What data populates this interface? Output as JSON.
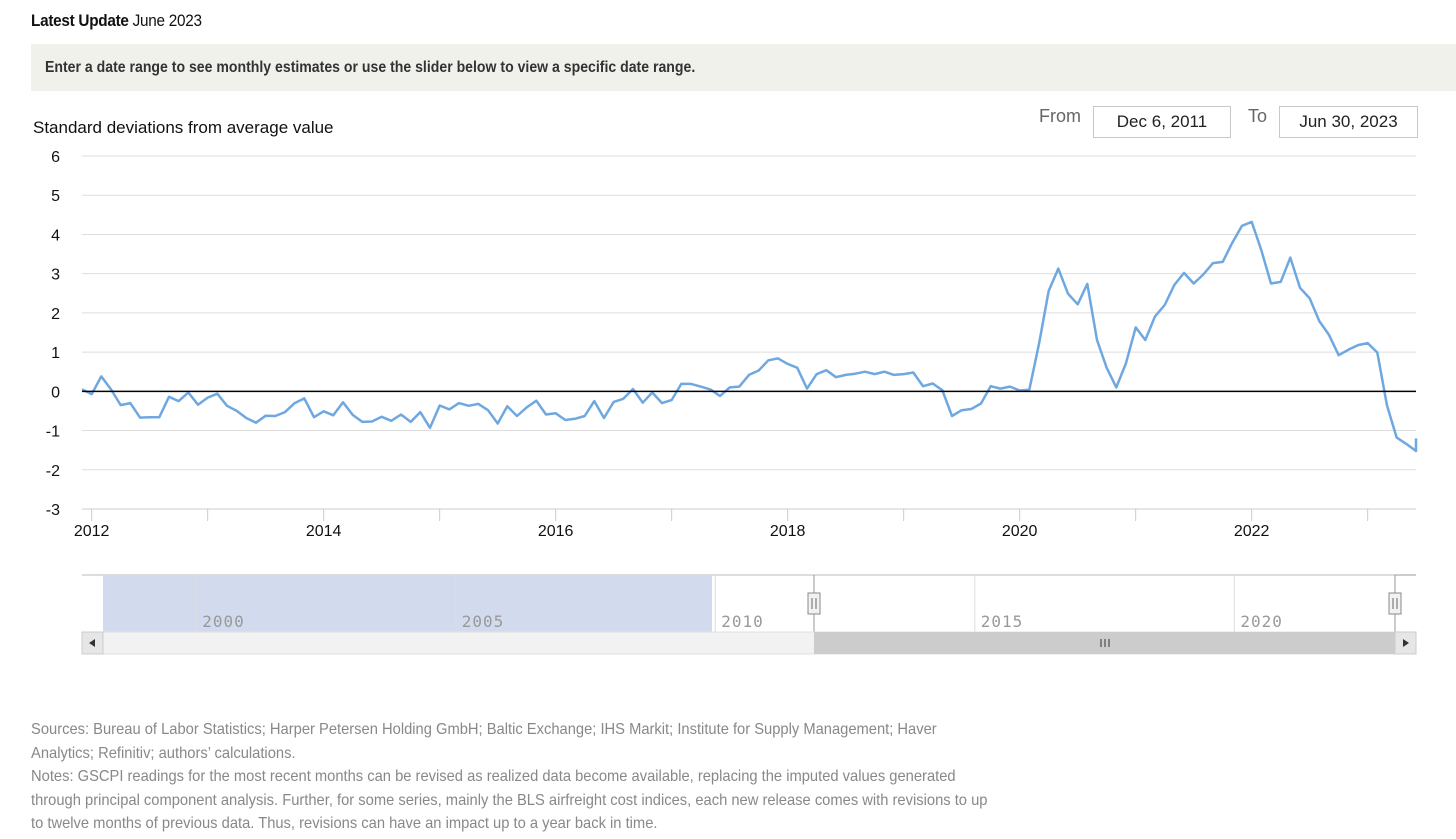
{
  "header": {
    "latest_label": "Latest Update",
    "latest_value": "June 2023",
    "instructions": "Enter a date range to see monthly estimates or use the slider below to view a specific date range."
  },
  "range": {
    "from_label": "From",
    "from_value": "Dec 6, 2011",
    "to_label": "To",
    "to_value": "Jun 30, 2023"
  },
  "colors": {
    "series": "#6fa8e0",
    "zero_line": "#000000",
    "grid": "#dddddd",
    "navigator_fill": "#d2dbee"
  },
  "chart_data": {
    "type": "line",
    "ylabel": "Standard deviations from average value",
    "ylim": [
      -3,
      6
    ],
    "yticks": [
      "6",
      "5",
      "4",
      "3",
      "2",
      "1",
      "0",
      "-1",
      "-2",
      "-3"
    ],
    "yticks_values": [
      6,
      5,
      4,
      3,
      2,
      1,
      0,
      -1,
      -2,
      -3
    ],
    "xlim": [
      "2011-12",
      "2023-06"
    ],
    "xticks": [
      "2012",
      "2014",
      "2016",
      "2018",
      "2020",
      "2022"
    ],
    "x_start": "2011-12",
    "grid": true,
    "legend": "none",
    "series": [
      {
        "values": [
          0.05,
          -0.07,
          0.38,
          0.05,
          -0.35,
          -0.3,
          -0.67,
          -0.66,
          -0.66,
          -0.14,
          -0.25,
          -0.03,
          -0.34,
          -0.16,
          -0.06,
          -0.37,
          -0.5,
          -0.68,
          -0.8,
          -0.62,
          -0.63,
          -0.53,
          -0.3,
          -0.18,
          -0.66,
          -0.51,
          -0.61,
          -0.28,
          -0.6,
          -0.78,
          -0.77,
          -0.65,
          -0.75,
          -0.59,
          -0.78,
          -0.53,
          -0.93,
          -0.36,
          -0.46,
          -0.3,
          -0.37,
          -0.32,
          -0.48,
          -0.82,
          -0.38,
          -0.63,
          -0.41,
          -0.24,
          -0.59,
          -0.56,
          -0.73,
          -0.7,
          -0.63,
          -0.25,
          -0.68,
          -0.27,
          -0.19,
          0.06,
          -0.29,
          -0.03,
          -0.3,
          -0.22,
          0.19,
          0.19,
          0.12,
          0.05,
          -0.12,
          0.1,
          0.12,
          0.42,
          0.53,
          0.79,
          0.84,
          0.7,
          0.6,
          0.07,
          0.44,
          0.54,
          0.36,
          0.42,
          0.45,
          0.5,
          0.44,
          0.5,
          0.42,
          0.44,
          0.48,
          0.13,
          0.2,
          0.03,
          -0.63,
          -0.48,
          -0.45,
          -0.31,
          0.13,
          0.07,
          0.12,
          0.02,
          0.04,
          1.21,
          2.56,
          3.13,
          2.49,
          2.22,
          2.74,
          1.31,
          0.6,
          0.1,
          0.72,
          1.63,
          1.31,
          1.91,
          2.2,
          2.71,
          3.02,
          2.75,
          2.98,
          3.27,
          3.3,
          3.79,
          4.22,
          4.32,
          3.6,
          2.75,
          2.79,
          3.41,
          2.64,
          2.37,
          1.79,
          1.44,
          0.92,
          1.06,
          1.18,
          1.23,
          0.99,
          -0.36,
          -1.18,
          -1.34,
          -1.52,
          -1.2
        ]
      }
    ]
  },
  "navigator": {
    "labels": [
      "2000",
      "2005",
      "2010",
      "2015",
      "2020"
    ],
    "selected_start": "2011-12",
    "selected_end": "2023-06",
    "left_arrow": "◀",
    "right_arrow": "▶",
    "handle_icon": "grip-icon"
  },
  "footer": {
    "sources": "Sources: Bureau of Labor Statistics; Harper Petersen Holding GmbH; Baltic Exchange; IHS Markit; Institute for Supply Management; Haver Analytics; Refinitiv; authors’ calculations.",
    "notes": "Notes: GSCPI readings for the most recent months can be revised as realized data become available, replacing the imputed values generated through principal component analysis. Further, for some series, mainly the BLS airfreight cost indices, each new release comes with revisions to up to twelve months of previous data. Thus, revisions can have an impact up to a year back in time."
  }
}
